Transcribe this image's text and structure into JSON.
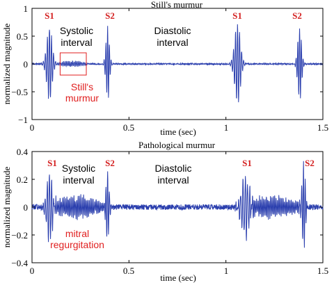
{
  "chart_data": [
    {
      "type": "line",
      "title": "Still's murmur",
      "xlabel": "time (sec)",
      "ylabel": "normalized magnitude",
      "xlim": [
        0,
        1.5
      ],
      "ylim": [
        -1,
        1
      ],
      "x_ticks": [
        0,
        0.5,
        1,
        1.5
      ],
      "x_tick_labels": [
        "0",
        "0.5",
        "1",
        "1.5"
      ],
      "y_ticks": [
        -1,
        -0.5,
        0,
        0.5,
        1
      ],
      "y_tick_labels": [
        "−1",
        "−0.5",
        "0",
        "0.5",
        "1"
      ],
      "series_color": "#2b3fae",
      "events": [
        {
          "t": 0.09,
          "amp": 0.72,
          "width": 0.028,
          "freq": 95
        },
        {
          "t": 0.39,
          "amp": 0.7,
          "width": 0.018,
          "freq": 110
        },
        {
          "t": 1.06,
          "amp": 0.78,
          "width": 0.03,
          "freq": 95
        },
        {
          "t": 1.38,
          "amp": 0.72,
          "width": 0.02,
          "freq": 110
        }
      ],
      "murmur_segments": [
        {
          "t0": 0.12,
          "t1": 0.3,
          "amp": 0.06,
          "freq": 130
        }
      ],
      "noise_level": 0.012,
      "event_labels": [
        {
          "text": "S1",
          "t": 0.09
        },
        {
          "text": "S2",
          "t": 0.39
        },
        {
          "text": "S1",
          "t": 1.06
        },
        {
          "text": "S2",
          "t": 1.38
        }
      ],
      "annotations": {
        "systolic_line1": "Systolic",
        "systolic_line2": "interval",
        "diastolic_line1": "Diastolic",
        "diastolic_line2": "interval",
        "murmur_line1": "Still's",
        "murmur_line2": "murmur"
      },
      "highlight_box": {
        "x0": 0.145,
        "x1": 0.28,
        "y0": -0.2,
        "y1": 0.2,
        "color": "#e01f1f"
      },
      "grid": false
    },
    {
      "type": "line",
      "title": "Pathological murmur",
      "xlabel": "time (sec)",
      "ylabel": "normalized magnitude",
      "xlim": [
        0,
        1.5
      ],
      "ylim": [
        -0.4,
        0.4
      ],
      "x_ticks": [
        0,
        0.5,
        1,
        1.5
      ],
      "x_tick_labels": [
        "0",
        "0.5",
        "1",
        "1.5"
      ],
      "y_ticks": [
        -0.4,
        -0.2,
        0,
        0.2,
        0.4
      ],
      "y_tick_labels": [
        "−0.4",
        "−0.2",
        "0",
        "0.2",
        "0.4"
      ],
      "series_color": "#2b3fae",
      "events": [
        {
          "t": 0.09,
          "amp": 0.26,
          "width": 0.03,
          "freq": 90
        },
        {
          "t": 0.39,
          "amp": 0.27,
          "width": 0.016,
          "freq": 110
        },
        {
          "t": 1.1,
          "amp": 0.24,
          "width": 0.04,
          "freq": 85
        },
        {
          "t": 1.4,
          "amp": 0.34,
          "width": 0.018,
          "freq": 110
        }
      ],
      "murmur_segments": [
        {
          "t0": 0.04,
          "t1": 0.42,
          "amp": 0.08,
          "freq": 140
        },
        {
          "t0": 1.02,
          "t1": 1.44,
          "amp": 0.08,
          "freq": 140
        }
      ],
      "noise_level": 0.02,
      "event_labels": [
        {
          "text": "S1",
          "t": 0.09
        },
        {
          "text": "S2",
          "t": 0.39
        },
        {
          "text": "S1",
          "t": 1.1
        },
        {
          "text": "S2",
          "t": 1.4
        }
      ],
      "annotations": {
        "systolic_line1": "Systolic",
        "systolic_line2": "interval",
        "diastolic_line1": "Diastolic",
        "diastolic_line2": "interval",
        "murmur_line1": "mitral",
        "murmur_line2": "regurgitation"
      },
      "grid": false
    }
  ]
}
